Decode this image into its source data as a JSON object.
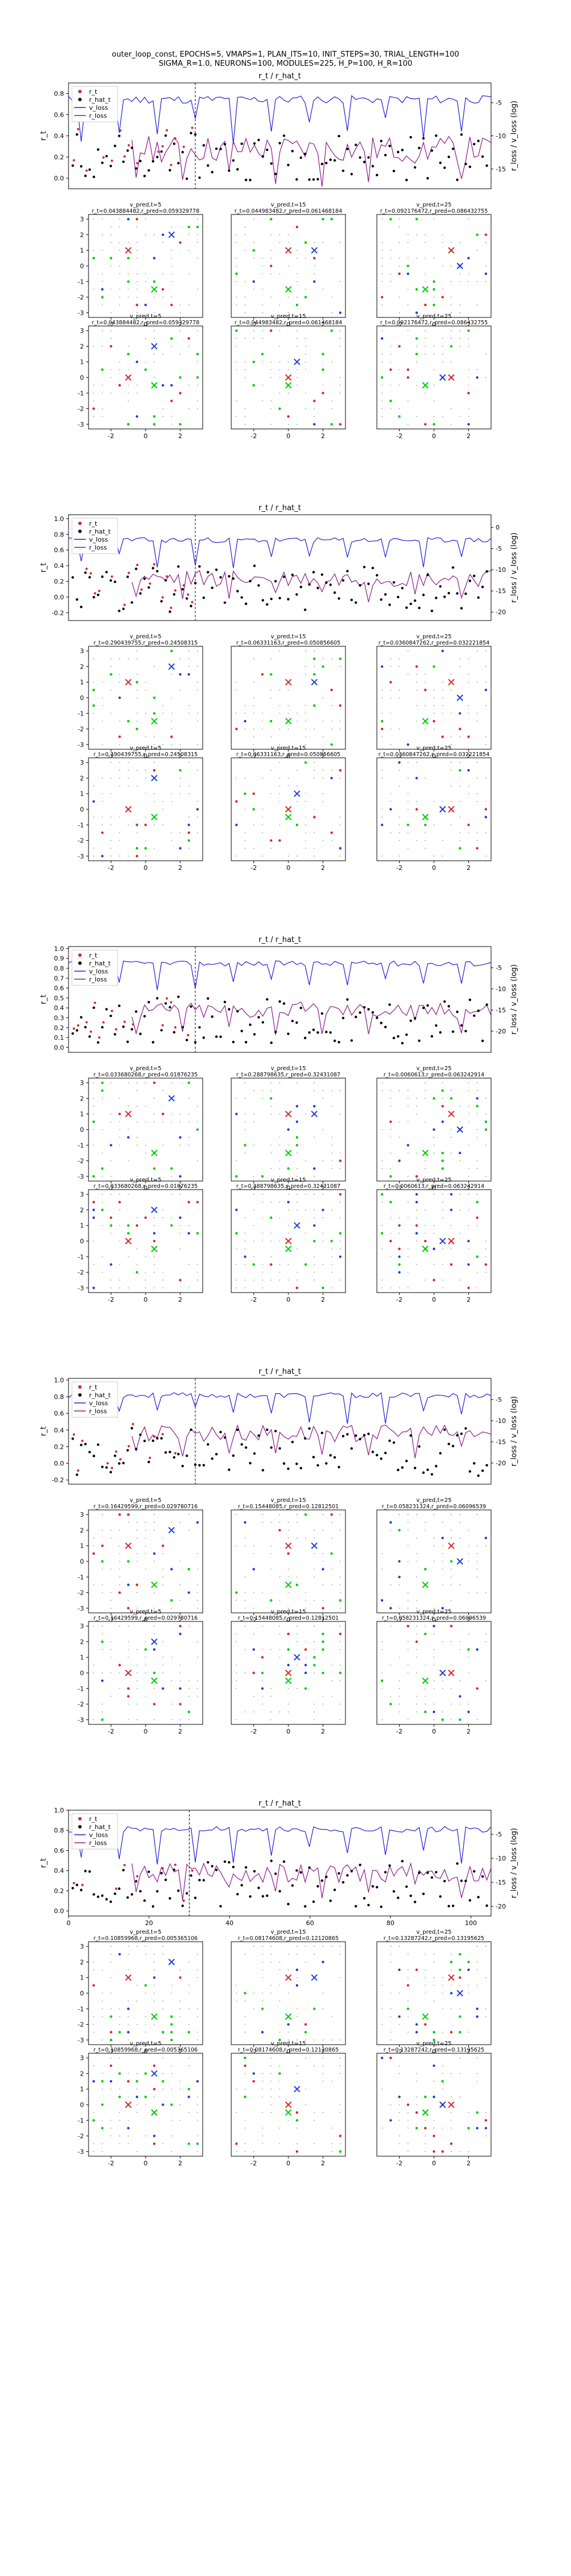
{
  "figure": {
    "title_line1": "outer_loop_const, EPOCHS=5, VMAPS=1, PLAN_ITS=10, INIT_STEPS=30, TRIAL_LENGTH=100",
    "title_line2": "SIGMA_R=1.0, NEURONS=100, MODULES=225, H_P=100, H_R=100"
  },
  "colors": {
    "r_t": "#d62728",
    "r_hat_t": "#000000",
    "v_loss": "#1f1fd6",
    "r_loss": "#8b1a8b",
    "goal": "#00cc00",
    "agent": "#d62728",
    "target": "#1f3fd6"
  },
  "chart_data": [
    {
      "type": "line",
      "title": "r_t / r_hat_t",
      "ylabel": "r_t",
      "ylabel_right": "r_loss / v_loss (log)",
      "legend": [
        "r_t",
        "r_hat_t",
        "v_loss",
        "r_loss"
      ],
      "legend_position": "top-left",
      "ylim": [
        -0.1,
        0.9
      ],
      "yticks": [
        "0.0",
        "0.2",
        "0.4",
        "0.6",
        "0.8"
      ],
      "y2lim": [
        -18,
        -2
      ],
      "y2ticks": [
        "-5",
        "-10",
        "-15"
      ],
      "x_range": [
        0,
        100
      ],
      "xticks": [],
      "vline_at": 30,
      "seed": 11,
      "v_loss_level": -4.5,
      "r_loss_level": -12,
      "subplots": [
        {
          "title": "r_t=0.043884482,r_pred=0.059329778",
          "sub": "v_pred,t=5"
        },
        {
          "title": "r_t=0.044983482,r_pred=0.061468184",
          "sub": "v_pred,t=15"
        },
        {
          "title": "r_t=0.092176472,r_pred=0.086432755",
          "sub": "v_pred,t=25"
        }
      ]
    },
    {
      "type": "line",
      "title": "r_t / r_hat_t",
      "ylabel": "r_t",
      "ylabel_right": "r_loss / v_loss (log)",
      "legend": [
        "r_t",
        "r_hat_t",
        "v_loss",
        "r_loss"
      ],
      "legend_position": "top-left",
      "ylim": [
        -0.3,
        1.05
      ],
      "yticks": [
        "-0.2",
        "0.0",
        "0.2",
        "0.4",
        "0.6",
        "0.8",
        "1.0"
      ],
      "y2lim": [
        -22,
        3
      ],
      "y2ticks": [
        "0",
        "-5",
        "-10",
        "-15",
        "-20"
      ],
      "x_range": [
        0,
        100
      ],
      "xticks": [],
      "vline_at": 30,
      "seed": 23,
      "v_loss_level": -3,
      "r_loss_level": -12,
      "subplots": [
        {
          "title": "r_t=0.290439755,r_pred=0.24508315",
          "sub": "v_pred,t=5"
        },
        {
          "title": "r_t=0.06331163,r_pred=0.050856605",
          "sub": "v_pred,t=15"
        },
        {
          "title": "r_t=0.0360847262,r_pred=0.032221854",
          "sub": "v_pred,t=25"
        }
      ]
    },
    {
      "type": "line",
      "title": "r_t / r_hat_t",
      "ylabel": "r_t",
      "ylabel_right": "r_loss / v_loss (log)",
      "legend": [
        "r_t",
        "r_hat_t",
        "v_loss",
        "r_loss"
      ],
      "legend_position": "top-left",
      "ylim": [
        -0.05,
        1.02
      ],
      "yticks": [
        "0.0",
        "0.1",
        "0.2",
        "0.3",
        "0.4",
        "0.5",
        "0.6",
        "0.7",
        "0.8",
        "0.9",
        "1.0"
      ],
      "y2lim": [
        -25,
        0
      ],
      "y2ticks": [
        "-5",
        "-10",
        "-15",
        "-20"
      ],
      "x_range": [
        0,
        100
      ],
      "xticks": [],
      "vline_at": 30,
      "seed": 37,
      "v_loss_level": -4,
      "r_loss_level": -15,
      "subplots": [
        {
          "title": "r_t=0.033680268,r_pred=0.01876235",
          "sub": "v_pred,t=5"
        },
        {
          "title": "r_t=0.288798635,r_pred=0.32431087",
          "sub": "v_pred,t=15"
        },
        {
          "title": "r_t=0.0060613,r_pred=0.063242914",
          "sub": "v_pred,t=25"
        }
      ]
    },
    {
      "type": "line",
      "title": "r_t / r_hat_t",
      "ylabel": "r_t",
      "ylabel_right": "r_loss / v_loss (log)",
      "legend": [
        "r_t",
        "r_hat_t",
        "v_loss",
        "r_loss"
      ],
      "legend_position": "top-left",
      "ylim": [
        -0.25,
        1.02
      ],
      "yticks": [
        "-0.2",
        "0.0",
        "0.2",
        "0.4",
        "0.6",
        "0.8",
        "1.0"
      ],
      "y2lim": [
        -25,
        0
      ],
      "y2ticks": [
        "-5",
        "-10",
        "-15",
        "-20"
      ],
      "x_range": [
        0,
        100
      ],
      "xticks": [],
      "vline_at": 30,
      "seed": 53,
      "v_loss_level": -4,
      "r_loss_level": -13,
      "subplots": [
        {
          "title": "r_t=0.16429599,r_pred=0.029780716",
          "sub": "v_pred,t=5"
        },
        {
          "title": "r_t=0.15448085,r_pred=0.12812501",
          "sub": "v_pred,t=15"
        },
        {
          "title": "r_t=0.058231324,r_pred=0.06096539",
          "sub": "v_pred,t=25"
        }
      ]
    },
    {
      "type": "line",
      "title": "r_t / r_hat_t",
      "ylabel": "r_t",
      "ylabel_right": "r_loss / v_loss (log)",
      "legend": [
        "r_t",
        "r_hat_t",
        "v_loss",
        "r_loss"
      ],
      "legend_position": "top-left",
      "ylim": [
        -0.05,
        1.0
      ],
      "yticks": [
        "0.0",
        "0.2",
        "0.4",
        "0.6",
        "0.8",
        "1.0"
      ],
      "y2lim": [
        -22,
        0
      ],
      "y2ticks": [
        "-5",
        "-10",
        "-15",
        "-20"
      ],
      "x_range": [
        0,
        105
      ],
      "xticks": [
        "0",
        "20",
        "40",
        "60",
        "80",
        "100"
      ],
      "vline_at": 30,
      "seed": 71,
      "v_loss_level": -4,
      "r_loss_level": -13,
      "subplots": [
        {
          "title": "r_t=0.10859968,r_pred=0.005365106",
          "sub": "v_pred,t=5"
        },
        {
          "title": "r_t=0.08174608,r_pred=0.12120865",
          "sub": "v_pred,t=15"
        },
        {
          "title": "r_t=0.13287242,r_pred=0.13195625",
          "sub": "v_pred,t=25"
        }
      ]
    }
  ],
  "grid_axis": {
    "ticks_y": [
      "3",
      "2",
      "1",
      "0",
      "-1",
      "-2",
      "-3"
    ],
    "ticks_x": [
      "-2",
      "0",
      "2"
    ]
  }
}
